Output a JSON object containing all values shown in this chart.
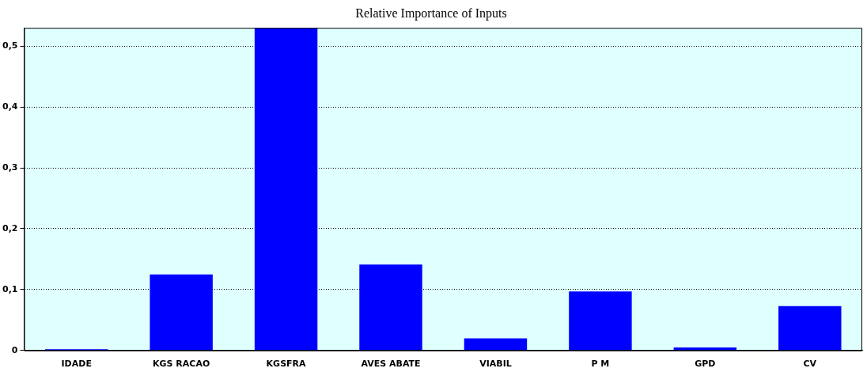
{
  "chart_data": {
    "type": "bar",
    "title": "Relative Importance of Inputs",
    "categories": [
      "IDADE",
      "KGS RACAO",
      "KGSFRA",
      "AVES ABATE",
      "VIABIL",
      "P M",
      "GPD",
      "CV"
    ],
    "values": [
      0.002,
      0.125,
      0.53,
      0.141,
      0.02,
      0.097,
      0.005,
      0.073
    ],
    "color": "#0000ff",
    "ylim": [
      0,
      0.53
    ],
    "yticks": [
      0,
      {
        "value": 0.1,
        "label": "0,1"
      },
      {
        "value": 0.2,
        "label": "0,2"
      },
      {
        "value": 0.3,
        "label": "0,3"
      },
      {
        "value": 0.4,
        "label": "0,4"
      },
      {
        "value": 0.5,
        "label": "0,5"
      }
    ],
    "grid": "y",
    "legend": false
  }
}
